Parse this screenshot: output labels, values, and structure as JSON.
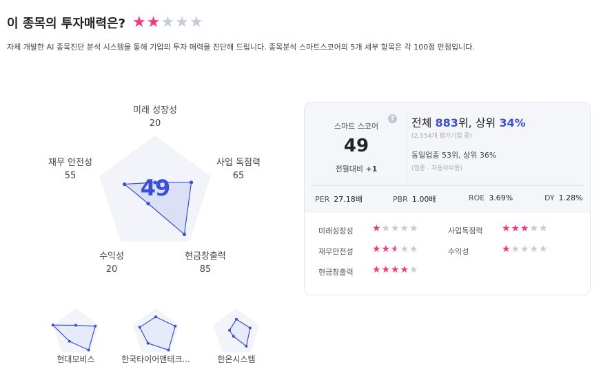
{
  "header": {
    "title": "이 종목의 투자매력은?",
    "stars": 2,
    "max_stars": 5,
    "description": "자체 개발한 AI 종목진단 분석 시스템을 통해 기업의 투자 매력을 진단해 드립니다. 종목분석 스마트스코어의 5개 세부 항목은 각 100점 만점입니다."
  },
  "colors": {
    "accent": "#3a4fd8",
    "star_on": "#ff3377",
    "star_off": "#c5cbd9",
    "pentagon": "#f3f4fa"
  },
  "radar": {
    "score": "49",
    "axes": [
      {
        "label": "미래 성장성",
        "value": 20,
        "value_text": "20"
      },
      {
        "label": "사업 독점력",
        "value": 65,
        "value_text": "65"
      },
      {
        "label": "현금창출력",
        "value": 85,
        "value_text": "85"
      },
      {
        "label": "수익성",
        "value": 20,
        "value_text": "20"
      },
      {
        "label": "재무 안전성",
        "value": 55,
        "value_text": "55"
      }
    ]
  },
  "card": {
    "smart_label": "스마트 스코어",
    "help_icon": "question-circle-icon",
    "score": "49",
    "mom_label": "전월대비",
    "mom_value": "+1",
    "rank_pre": "전체 ",
    "rank": "883",
    "rank_mid": "위, 상위 ",
    "rank_pct": "34%",
    "rank_note": "(2,554개 평가기업 중)",
    "industry_rank": "동일업종 53위, 상위 36%",
    "industry_note": "(업종 - 자동차부품)",
    "ratios": [
      {
        "k": "PER",
        "v": "27.18배"
      },
      {
        "k": "PBR",
        "v": "1.00배"
      },
      {
        "k": "ROE",
        "v": "3.69%"
      },
      {
        "k": "DY",
        "v": "1.28%"
      }
    ],
    "ratings": [
      {
        "label": "미래성장성",
        "stars": 1
      },
      {
        "label": "사업독점력",
        "stars": 3
      },
      {
        "label": "재무안전성",
        "stars": 2.5
      },
      {
        "label": "수익성",
        "stars": 1
      },
      {
        "label": "현금창출력",
        "stars": 4
      }
    ]
  },
  "peers": [
    {
      "name": "현대모비스",
      "values": [
        30,
        85,
        90,
        45,
        100
      ]
    },
    {
      "name": "한국타이어앤테크...",
      "values": [
        65,
        85,
        90,
        55,
        70
      ]
    },
    {
      "name": "한온시스템",
      "values": [
        55,
        60,
        70,
        20,
        30
      ]
    }
  ]
}
